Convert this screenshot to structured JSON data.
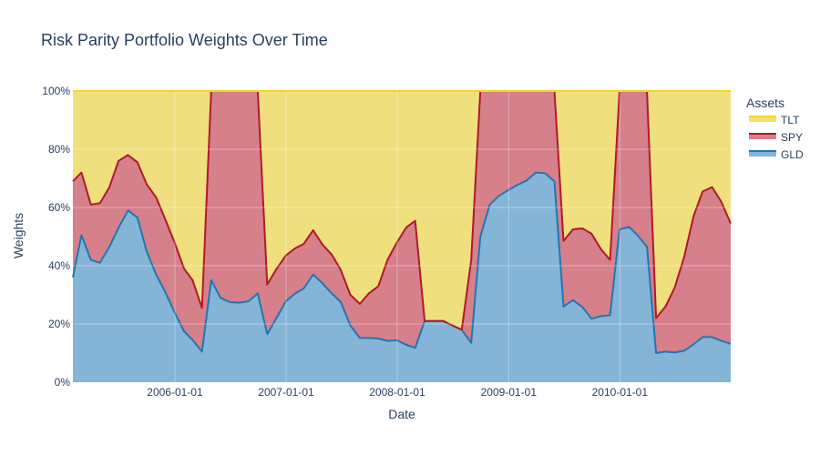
{
  "chart_data": {
    "type": "area",
    "title": "Risk Parity Portfolio Weights Over Time",
    "xlabel": "Date",
    "ylabel": "Weights",
    "ylim": [
      0,
      1
    ],
    "xlim": [
      "2005-01-31",
      "2010-12-31"
    ],
    "x_ticks": [
      "2006-01-01",
      "2007-01-01",
      "2008-01-01",
      "2009-01-01",
      "2010-01-01"
    ],
    "y_ticks": [
      0,
      0.2,
      0.4,
      0.6,
      0.8,
      1.0
    ],
    "y_tick_labels": [
      "0%",
      "20%",
      "40%",
      "60%",
      "80%",
      "100%"
    ],
    "stacking": "normalized",
    "legend": {
      "title": "Assets",
      "placement": "top-right",
      "entries": [
        "TLT",
        "SPY",
        "GLD"
      ]
    },
    "x": [
      "2005-01-31",
      "2005-02-28",
      "2005-03-31",
      "2005-04-30",
      "2005-05-31",
      "2005-06-30",
      "2005-07-31",
      "2005-08-31",
      "2005-09-30",
      "2005-10-31",
      "2005-11-30",
      "2005-12-31",
      "2006-01-31",
      "2006-02-28",
      "2006-03-31",
      "2006-04-30",
      "2006-05-31",
      "2006-06-30",
      "2006-07-31",
      "2006-08-31",
      "2006-09-30",
      "2006-10-31",
      "2006-11-30",
      "2006-12-31",
      "2007-01-31",
      "2007-02-28",
      "2007-03-31",
      "2007-04-30",
      "2007-05-31",
      "2007-06-30",
      "2007-07-31",
      "2007-08-31",
      "2007-09-30",
      "2007-10-31",
      "2007-11-30",
      "2007-12-31",
      "2008-01-31",
      "2008-02-29",
      "2008-03-31",
      "2008-04-30",
      "2008-05-31",
      "2008-06-30",
      "2008-07-31",
      "2008-08-31",
      "2008-09-30",
      "2008-10-31",
      "2008-11-30",
      "2008-12-31",
      "2009-01-31",
      "2009-02-28",
      "2009-03-31",
      "2009-04-30",
      "2009-05-31",
      "2009-06-30",
      "2009-07-31",
      "2009-08-31",
      "2009-09-30",
      "2009-10-31",
      "2009-11-30",
      "2009-12-31",
      "2010-01-31",
      "2010-02-28",
      "2010-03-31",
      "2010-04-30",
      "2010-05-31",
      "2010-06-30",
      "2010-07-31",
      "2010-08-31",
      "2010-09-30",
      "2010-10-31",
      "2010-11-30",
      "2010-12-31"
    ],
    "series": [
      {
        "name": "GLD",
        "color": "#1f77b4",
        "fill": "rgba(31,119,180,0.55)",
        "values": [
          0.36,
          0.505,
          0.42,
          0.41,
          0.465,
          0.53,
          0.59,
          0.565,
          0.45,
          0.37,
          0.31,
          0.24,
          0.175,
          0.145,
          0.105,
          0.35,
          0.29,
          0.275,
          0.273,
          0.278,
          0.305,
          0.165,
          0.22,
          0.277,
          0.305,
          0.322,
          0.37,
          0.34,
          0.305,
          0.275,
          0.195,
          0.152,
          0.152,
          0.15,
          0.142,
          0.144,
          0.128,
          0.118,
          0.21,
          0.21,
          0.21,
          0.195,
          0.18,
          0.135,
          0.5,
          0.61,
          0.64,
          0.66,
          0.678,
          0.692,
          0.72,
          0.718,
          0.69,
          0.26,
          0.282,
          0.258,
          0.218,
          0.227,
          0.23,
          0.525,
          0.533,
          0.505,
          0.465,
          0.1,
          0.105,
          0.102,
          0.108,
          0.13,
          0.155,
          0.155,
          0.142,
          0.132
        ]
      },
      {
        "name": "SPY",
        "color": "#b2182b",
        "fill": "rgba(178,24,43,0.55)",
        "values": [
          0.33,
          0.215,
          0.19,
          0.205,
          0.205,
          0.23,
          0.19,
          0.19,
          0.23,
          0.265,
          0.25,
          0.24,
          0.215,
          0.205,
          0.15,
          0.65,
          0.71,
          0.725,
          0.727,
          0.722,
          0.695,
          0.17,
          0.168,
          0.158,
          0.155,
          0.153,
          0.152,
          0.133,
          0.133,
          0.11,
          0.105,
          0.117,
          0.153,
          0.18,
          0.278,
          0.336,
          0.404,
          0.436,
          0,
          0,
          0,
          0,
          0,
          0.285,
          0.5,
          0.39,
          0.36,
          0.34,
          0.322,
          0.308,
          0.28,
          0.282,
          0.31,
          0.225,
          0.243,
          0.27,
          0.292,
          0.23,
          0.19,
          0.475,
          0.467,
          0.495,
          0.535,
          0.12,
          0.155,
          0.223,
          0.322,
          0.44,
          0.5,
          0.515,
          0.478,
          0.413
        ]
      },
      {
        "name": "TLT",
        "color": "#f7d619",
        "fill": "rgba(230,201,41,0.6)",
        "values": [
          0.31,
          0.28,
          0.39,
          0.385,
          0.33,
          0.24,
          0.22,
          0.245,
          0.32,
          0.365,
          0.44,
          0.52,
          0.61,
          0.65,
          0.745,
          0,
          0,
          0,
          0,
          0,
          0,
          0.665,
          0.612,
          0.565,
          0.54,
          0.525,
          0.478,
          0.527,
          0.562,
          0.615,
          0.7,
          0.731,
          0.695,
          0.67,
          0.58,
          0.52,
          0.468,
          0.446,
          0.79,
          0.79,
          0.79,
          0.805,
          0.82,
          0.58,
          0,
          0,
          0,
          0,
          0,
          0,
          0,
          0,
          0,
          0.515,
          0.475,
          0.472,
          0.49,
          0.543,
          0.58,
          0,
          0,
          0,
          0,
          0.78,
          0.74,
          0.675,
          0.57,
          0.43,
          0.345,
          0.33,
          0.38,
          0.455
        ]
      }
    ]
  }
}
